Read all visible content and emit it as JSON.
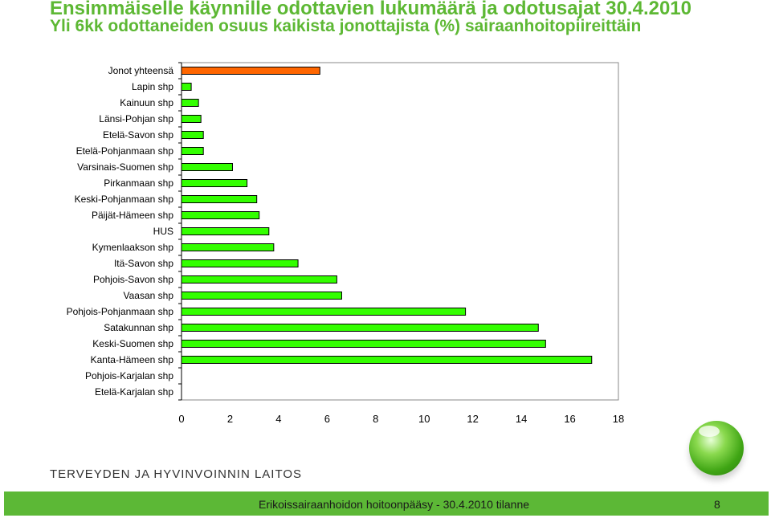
{
  "header": {
    "title": "Ensimmäiselle käynnille odottavien lukumäärä ja odotusajat 30.4.2010",
    "subtitle": "Yli 6kk odottaneiden osuus kaikista jonottajista (%) sairaanhoitopiireittäin"
  },
  "chart_data": {
    "type": "bar",
    "orientation": "horizontal",
    "categories": [
      "Jonot yhteensä",
      "Lapin shp",
      "Kainuun shp",
      "Länsi-Pohjan shp",
      "Etelä-Savon shp",
      "Etelä-Pohjanmaan shp",
      "Varsinais-Suomen shp",
      "Pirkanmaan shp",
      "Keski-Pohjanmaan shp",
      "Päijät-Hämeen shp",
      "HUS",
      "Kymenlaakson shp",
      "Itä-Savon shp",
      "Pohjois-Savon shp",
      "Vaasan shp",
      "Pohjois-Pohjanmaan shp",
      "Satakunnan shp",
      "Keski-Suomen shp",
      "Kanta-Hämeen shp",
      "Pohjois-Karjalan shp",
      "Etelä-Karjalan shp"
    ],
    "values": [
      5.7,
      0.4,
      0.7,
      0.8,
      0.9,
      0.9,
      2.1,
      2.7,
      3.1,
      3.2,
      3.6,
      3.8,
      4.8,
      6.4,
      6.6,
      11.7,
      14.7,
      15.0,
      16.9,
      0,
      0
    ],
    "xlim": [
      0,
      18
    ],
    "xticks": [
      "0",
      "2",
      "4",
      "6",
      "8",
      "10",
      "12",
      "14",
      "16",
      "18"
    ],
    "colors": {
      "total": "#ff6600",
      "district": "#33ff00"
    },
    "grid": false,
    "legend": "none"
  },
  "branding": {
    "org": "TERVEYDEN JA HYVINVOINNIN LAITOS"
  },
  "footer": {
    "text": "Erikoissairaanhoidon hoitoonpääsy - 30.4.2010 tilanne",
    "page": "8"
  }
}
